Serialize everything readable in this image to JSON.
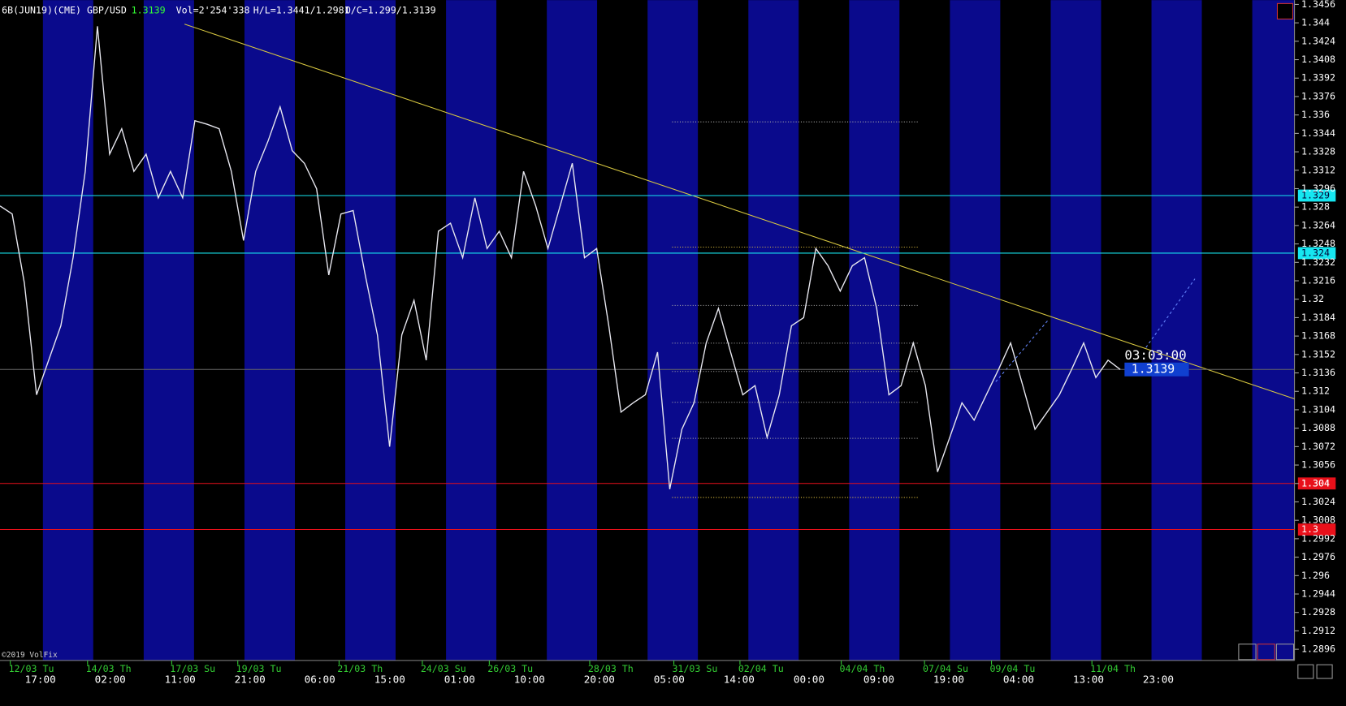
{
  "header": {
    "symbol": "6B(JUN19)(CME) GBP/USD",
    "last": 1.3139,
    "volume": "Vol=2'254'338",
    "high_low": "H/L=1.3441/1.2981",
    "open_close": "O/C=1.299/1.3139"
  },
  "price_axis": {
    "range": [
      1.2896,
      1.3456
    ],
    "ticks": [
      1.3456,
      1.344,
      1.3424,
      1.3408,
      1.3392,
      1.3376,
      1.336,
      1.3344,
      1.3328,
      1.3312,
      1.3296,
      1.328,
      1.3264,
      1.3248,
      1.3232,
      1.3216,
      1.32,
      1.3184,
      1.3168,
      1.3152,
      1.3136,
      1.312,
      1.3104,
      1.3088,
      1.3072,
      1.3056,
      1.304,
      1.3024,
      1.3008,
      1.2992,
      1.2976,
      1.296,
      1.2944,
      1.2928,
      1.2912,
      1.2896
    ]
  },
  "levels": [
    {
      "value": 1.329,
      "color": "#16e6f0"
    },
    {
      "value": 1.324,
      "color": "#16e6f0"
    },
    {
      "value": 1.304,
      "color": "#e8101a"
    },
    {
      "value": 1.3,
      "color": "#e8101a"
    }
  ],
  "countdown": "03:03:00",
  "dates": [
    "12/03 Tu",
    "14/03 Th",
    "17/03 Su",
    "19/03 Tu",
    "21/03 Th",
    "24/03 Su",
    "26/03 Tu",
    "28/03 Th",
    "31/03 Su",
    "02/04 Tu",
    "04/04 Th",
    "07/04 Su",
    "09/04 Tu",
    "11/04 Th"
  ],
  "times": [
    "17:00",
    "02:00",
    "11:00",
    "21:00",
    "06:00",
    "15:00",
    "01:00",
    "10:00",
    "20:00",
    "05:00",
    "14:00",
    "00:00",
    "09:00",
    "19:00",
    "04:00",
    "13:00",
    "23:00"
  ],
  "copyright": "©2019 VolFix",
  "price": {
    "values": [
      1.3281,
      1.3274,
      1.3214,
      1.3117,
      1.3147,
      1.3177,
      1.3236,
      1.3311,
      1.3437,
      1.3326,
      1.3348,
      1.3311,
      1.3326,
      1.3288,
      1.3311,
      1.3288,
      1.3355,
      1.3352,
      1.3348,
      1.3311,
      1.3251,
      1.3311,
      1.3337,
      1.3367,
      1.3329,
      1.3318,
      1.3296,
      1.3221,
      1.3274,
      1.3277,
      1.3221,
      1.3169,
      1.3072,
      1.3169,
      1.3199,
      1.3147,
      1.3259,
      1.3266,
      1.3236,
      1.3288,
      1.3244,
      1.3259,
      1.3236,
      1.3311,
      1.3281,
      1.3244,
      1.3281,
      1.3318,
      1.3236,
      1.3244,
      1.3177,
      1.3102,
      1.311,
      1.3117,
      1.3154,
      1.3035,
      1.3087,
      1.311,
      1.3162,
      1.3192,
      1.3154,
      1.3117,
      1.3125,
      1.308,
      1.3117,
      1.3177,
      1.3184,
      1.3244,
      1.3229,
      1.3207,
      1.3229,
      1.3236,
      1.3192,
      1.3117,
      1.3125,
      1.3162,
      1.3125,
      1.305,
      1.308,
      1.311,
      1.3095,
      1.3117,
      1.3139,
      1.3162,
      1.3125,
      1.3087,
      1.3102,
      1.3117,
      1.3139,
      1.3162,
      1.3132,
      1.3147,
      1.3139
    ],
    "color": "#e8e8f0"
  }
}
